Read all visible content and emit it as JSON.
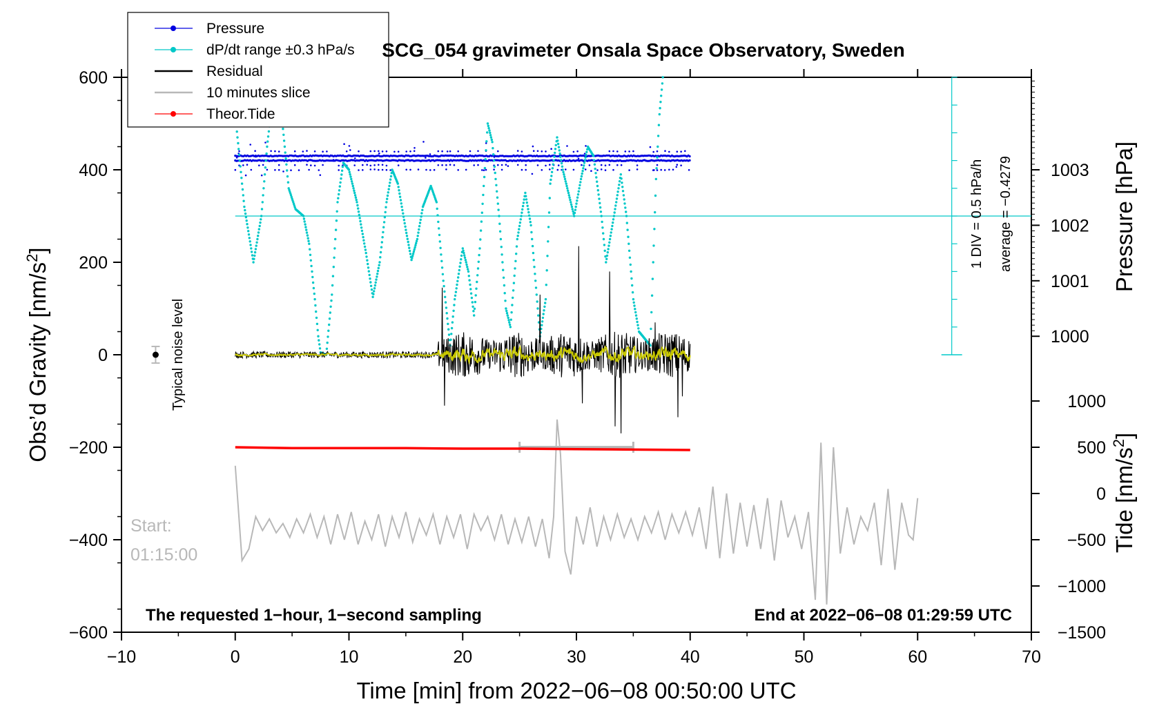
{
  "chart_data": {
    "type": "line",
    "title": "SCG_054 gravimeter Onsala Space Observatory, Sweden",
    "xlabel": "Time [min] from 2022−06−08 00:50:00 UTC",
    "ylabel_left": "Obs’d Gravity [nm/s",
    "ylabel_left_sup": "2",
    "ylabel_left_close": "]",
    "ylabel_right_pressure": "Pressure [hPa]",
    "ylabel_right_tide": "Tide [nm/s",
    "ylabel_right_tide_sup": "2",
    "ylabel_right_tide_close": "]",
    "xlim": [
      -10,
      70
    ],
    "ylim": [
      -600,
      600
    ],
    "xticks": [
      {
        "v": -10,
        "label": "−10"
      },
      {
        "v": 0,
        "label": "0"
      },
      {
        "v": 10,
        "label": "10"
      },
      {
        "v": 20,
        "label": "20"
      },
      {
        "v": 30,
        "label": "30"
      },
      {
        "v": 40,
        "label": "40"
      },
      {
        "v": 50,
        "label": "50"
      },
      {
        "v": 60,
        "label": "60"
      },
      {
        "v": 70,
        "label": "70"
      }
    ],
    "yticks": [
      {
        "v": 600,
        "label": "600"
      },
      {
        "v": 400,
        "label": "400"
      },
      {
        "v": 200,
        "label": "200"
      },
      {
        "v": 0,
        "label": "0"
      },
      {
        "v": -200,
        "label": "−200"
      },
      {
        "v": -400,
        "label": "−400"
      },
      {
        "v": -600,
        "label": "−600"
      }
    ],
    "pressure_axis": {
      "ticks": [
        {
          "v": 1003,
          "label": "1003",
          "y": 400
        },
        {
          "v": 1002,
          "label": "1002",
          "y": 280
        },
        {
          "v": 1001,
          "label": "1001",
          "y": 160
        },
        {
          "v": 1000,
          "label": "1000",
          "y": 40
        }
      ]
    },
    "tide_axis": {
      "ticks": [
        {
          "v": 1000,
          "label": "1000",
          "y": -100
        },
        {
          "v": 500,
          "label": "500",
          "y": -200
        },
        {
          "v": 0,
          "label": "0",
          "y": -300
        },
        {
          "v": -500,
          "label": "−500",
          "y": -400
        },
        {
          "v": -1000,
          "label": "−1000",
          "y": -500
        },
        {
          "v": -1500,
          "label": "−1500",
          "y": -600
        }
      ]
    },
    "legend": [
      {
        "label": "Pressure",
        "color": "#0000e0",
        "marker": true
      },
      {
        "label": "dP/dt range ±0.3 hPa/s",
        "color": "#00c8c8",
        "marker": true
      },
      {
        "label": "Residual",
        "color": "#000000",
        "marker": false
      },
      {
        "label": "10 minutes slice",
        "color": "#b8b8b8",
        "marker": false
      },
      {
        "label": "Theor.Tide",
        "color": "#ff0000",
        "marker": true
      }
    ],
    "legend_position": "top-left",
    "colors": {
      "pressure": "#0000e0",
      "dpdt": "#00c8c8",
      "residual": "#000000",
      "smoothed": "#c8c800",
      "slice": "#b8b8b8",
      "tide": "#ff0000"
    },
    "annotations": {
      "noise_label": "Typical noise level",
      "noise_point": {
        "x": -7,
        "y": 0,
        "err": 18
      },
      "div_label": "1 DIV = 0.5 hPa/h",
      "average_label": "average = −0.4279",
      "start_line1": "Start:",
      "start_line2": "01:15:00",
      "note_left": "The requested 1−hour, 1−second sampling",
      "note_right": "End at 2022−06−08 01:29:59 UTC",
      "dpdt_reference_y": 300,
      "slice_window": {
        "x0": 25,
        "x1": 35,
        "y": -200
      }
    },
    "series": [
      {
        "name": "dP/dt",
        "points": [
          [
            0,
            520
          ],
          [
            0.8,
            320
          ],
          [
            1.6,
            200
          ],
          [
            2.3,
            300
          ],
          [
            2.8,
            450
          ],
          [
            3.3,
            560
          ],
          [
            4,
            540
          ],
          [
            4.7,
            360
          ],
          [
            5.3,
            315
          ],
          [
            6,
            300
          ],
          [
            6.5,
            240
          ],
          [
            7,
            120
          ],
          [
            7.3,
            40
          ],
          [
            7.5,
            5
          ],
          [
            8,
            0
          ],
          [
            8.5,
            130
          ],
          [
            9,
            330
          ],
          [
            9.5,
            415
          ],
          [
            10,
            400
          ],
          [
            10.7,
            330
          ],
          [
            11.5,
            220
          ],
          [
            12.1,
            125
          ],
          [
            12.7,
            200
          ],
          [
            13.3,
            330
          ],
          [
            13.8,
            400
          ],
          [
            14.3,
            370
          ],
          [
            15,
            270
          ],
          [
            15.5,
            205
          ],
          [
            16,
            250
          ],
          [
            16.5,
            320
          ],
          [
            17.2,
            365
          ],
          [
            17.7,
            330
          ],
          [
            18.3,
            160
          ],
          [
            18.9,
            20
          ],
          [
            19.3,
            120
          ],
          [
            20,
            230
          ],
          [
            20.5,
            180
          ],
          [
            21,
            85
          ],
          [
            21.5,
            230
          ],
          [
            22.2,
            500
          ],
          [
            22.6,
            460
          ],
          [
            23.2,
            300
          ],
          [
            23.8,
            100
          ],
          [
            24.2,
            60
          ],
          [
            24.8,
            250
          ],
          [
            25.5,
            350
          ],
          [
            26,
            280
          ],
          [
            26.8,
            40
          ],
          [
            27.3,
            120
          ],
          [
            27.7,
            370
          ],
          [
            28.3,
            470
          ],
          [
            28.8,
            400
          ],
          [
            29.3,
            350
          ],
          [
            29.8,
            300
          ],
          [
            30.4,
            380
          ],
          [
            31,
            450
          ],
          [
            31.5,
            430
          ],
          [
            32.2,
            300
          ],
          [
            32.6,
            200
          ],
          [
            33.3,
            300
          ],
          [
            33.9,
            390
          ],
          [
            34.4,
            300
          ],
          [
            35,
            120
          ],
          [
            35.5,
            50
          ],
          [
            36.5,
            20
          ],
          [
            37,
            380
          ],
          [
            37.3,
            520
          ],
          [
            37.6,
            600
          ]
        ]
      },
      {
        "name": "Theor.Tide",
        "points": [
          [
            0,
            -200
          ],
          [
            5,
            -202
          ],
          [
            10,
            -202
          ],
          [
            15,
            -202
          ],
          [
            20,
            -203
          ],
          [
            25,
            -203
          ],
          [
            30,
            -204
          ],
          [
            35,
            -205
          ],
          [
            40,
            -206
          ]
        ]
      },
      {
        "name": "10 minutes slice",
        "points": [
          [
            0,
            -240
          ],
          [
            0.6,
            -445
          ],
          [
            1.2,
            -420
          ],
          [
            1.8,
            -350
          ],
          [
            2.4,
            -380
          ],
          [
            3,
            -355
          ],
          [
            3.6,
            -385
          ],
          [
            4.2,
            -365
          ],
          [
            4.8,
            -395
          ],
          [
            5.4,
            -355
          ],
          [
            6,
            -385
          ],
          [
            6.6,
            -345
          ],
          [
            7.2,
            -395
          ],
          [
            7.8,
            -350
          ],
          [
            8.4,
            -410
          ],
          [
            9,
            -345
          ],
          [
            9.6,
            -400
          ],
          [
            10.2,
            -340
          ],
          [
            10.8,
            -410
          ],
          [
            11.4,
            -360
          ],
          [
            12,
            -400
          ],
          [
            12.6,
            -345
          ],
          [
            13.2,
            -415
          ],
          [
            13.8,
            -350
          ],
          [
            14.4,
            -395
          ],
          [
            15,
            -340
          ],
          [
            15.6,
            -405
          ],
          [
            16.2,
            -355
          ],
          [
            16.8,
            -390
          ],
          [
            17.4,
            -345
          ],
          [
            18,
            -410
          ],
          [
            18.6,
            -350
          ],
          [
            19.2,
            -395
          ],
          [
            19.8,
            -345
          ],
          [
            20.4,
            -420
          ],
          [
            21,
            -345
          ],
          [
            21.6,
            -380
          ],
          [
            22.2,
            -350
          ],
          [
            22.8,
            -400
          ],
          [
            23.4,
            -345
          ],
          [
            24,
            -410
          ],
          [
            24.6,
            -355
          ],
          [
            25.2,
            -405
          ],
          [
            25.8,
            -350
          ],
          [
            26.4,
            -415
          ],
          [
            27,
            -355
          ],
          [
            27.6,
            -440
          ],
          [
            28,
            -350
          ],
          [
            28.3,
            -140
          ],
          [
            28.6,
            -215
          ],
          [
            29,
            -425
          ],
          [
            29.5,
            -475
          ],
          [
            30,
            -350
          ],
          [
            30.6,
            -410
          ],
          [
            31.2,
            -330
          ],
          [
            31.8,
            -415
          ],
          [
            32.4,
            -350
          ],
          [
            33,
            -400
          ],
          [
            33.6,
            -345
          ],
          [
            34.2,
            -395
          ],
          [
            34.8,
            -355
          ],
          [
            35.4,
            -400
          ],
          [
            36,
            -350
          ],
          [
            36.6,
            -385
          ],
          [
            37.2,
            -340
          ],
          [
            37.8,
            -400
          ],
          [
            38.4,
            -345
          ],
          [
            39,
            -385
          ],
          [
            39.6,
            -340
          ],
          [
            40.2,
            -390
          ],
          [
            40.8,
            -330
          ],
          [
            41.4,
            -420
          ],
          [
            42,
            -285
          ],
          [
            42.6,
            -440
          ],
          [
            43.2,
            -300
          ],
          [
            43.8,
            -430
          ],
          [
            44.4,
            -320
          ],
          [
            45,
            -415
          ],
          [
            45.6,
            -325
          ],
          [
            46.2,
            -420
          ],
          [
            46.8,
            -310
          ],
          [
            47.4,
            -445
          ],
          [
            48,
            -315
          ],
          [
            48.6,
            -395
          ],
          [
            49.2,
            -350
          ],
          [
            49.8,
            -420
          ],
          [
            50.4,
            -340
          ],
          [
            51,
            -530
          ],
          [
            51.5,
            -190
          ],
          [
            52,
            -540
          ],
          [
            52.6,
            -200
          ],
          [
            53.2,
            -430
          ],
          [
            53.8,
            -330
          ],
          [
            54.4,
            -410
          ],
          [
            55,
            -350
          ],
          [
            55.6,
            -380
          ],
          [
            56.2,
            -320
          ],
          [
            56.8,
            -455
          ],
          [
            57.4,
            -290
          ],
          [
            58,
            -465
          ],
          [
            58.6,
            -320
          ],
          [
            59.2,
            -390
          ],
          [
            59.6,
            -400
          ],
          [
            60,
            -310
          ]
        ]
      },
      {
        "name": "Pressure",
        "levels": [
          440,
          430,
          420,
          410,
          400
        ],
        "range": [
          0,
          40
        ]
      },
      {
        "name": "Residual",
        "range": [
          0,
          40
        ],
        "quiet_end": 17.8,
        "quiet_amp": 7,
        "loud_amp": 50,
        "spikes": [
          [
            18.2,
            145
          ],
          [
            18.4,
            -110
          ],
          [
            26.8,
            130
          ],
          [
            30.2,
            235
          ],
          [
            30.5,
            -105
          ],
          [
            32.9,
            180
          ],
          [
            33.4,
            -155
          ],
          [
            33.9,
            -170
          ],
          [
            34.3,
            -40
          ],
          [
            36.9,
            70
          ],
          [
            38.9,
            -135
          ],
          [
            39.3,
            -90
          ]
        ]
      }
    ]
  }
}
